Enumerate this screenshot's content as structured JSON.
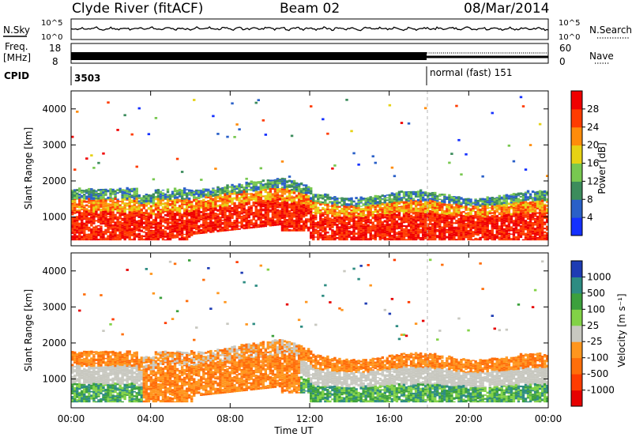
{
  "header": {
    "station": "Clyde River (fitACF)",
    "beam": "Beam 02",
    "date": "08/Mar/2014"
  },
  "top_panels": {
    "nsky_label": "N.Sky",
    "nsky_ticks": [
      "10^5",
      "10^0"
    ],
    "nsearch_label": "N.Search",
    "nsearch_ticks": [
      "10^5",
      "10^0"
    ],
    "freq_label": "Freq.",
    "freq_unit": "[MHz]",
    "freq_ticks": [
      "18",
      "8"
    ],
    "nave_label": "Nave",
    "nave_ticks": [
      "60",
      "0"
    ],
    "cpid_label": "CPID",
    "cpid_first": "3503",
    "cpid_second": "normal (fast) 151"
  },
  "chart_data": [
    {
      "type": "heatmap",
      "name": "power",
      "ylabel": "Slant Range [km]",
      "y_ticks": [
        "1000",
        "2000",
        "3000",
        "4000"
      ],
      "ylim": [
        200,
        4500
      ],
      "xlim": [
        0,
        24
      ],
      "colorbar_label": "Power [dB]",
      "colorbar_ticks": [
        "4",
        "8",
        "12",
        "16",
        "20",
        "24",
        "28"
      ],
      "colorbar_colors": [
        "#1430ff",
        "#2a60c8",
        "#3c8c5c",
        "#78c850",
        "#e6d214",
        "#ff8c0a",
        "#ff3c00",
        "#f00000"
      ],
      "grid": false
    },
    {
      "type": "heatmap",
      "name": "velocity",
      "ylabel": "Slant Range [km]",
      "y_ticks": [
        "1000",
        "2000",
        "3000",
        "4000"
      ],
      "ylim": [
        200,
        4500
      ],
      "xlim": [
        0,
        24
      ],
      "colorbar_label": "Velocity [m s⁻¹]",
      "colorbar_ticks": [
        "1000",
        "500",
        "100",
        "25",
        "-25",
        "-100",
        "-500",
        "-1000"
      ],
      "colorbar_colors": [
        "#1e3cb4",
        "#2d8c82",
        "#3ca03c",
        "#82d246",
        "#c8c8c0",
        "#ff961e",
        "#ff6e0a",
        "#ff3c00",
        "#e60000"
      ],
      "grid": false
    }
  ],
  "x_axis": {
    "ticks": [
      "00:00",
      "04:00",
      "08:00",
      "12:00",
      "16:00",
      "20:00",
      "00:00"
    ],
    "label": "Time UT"
  }
}
